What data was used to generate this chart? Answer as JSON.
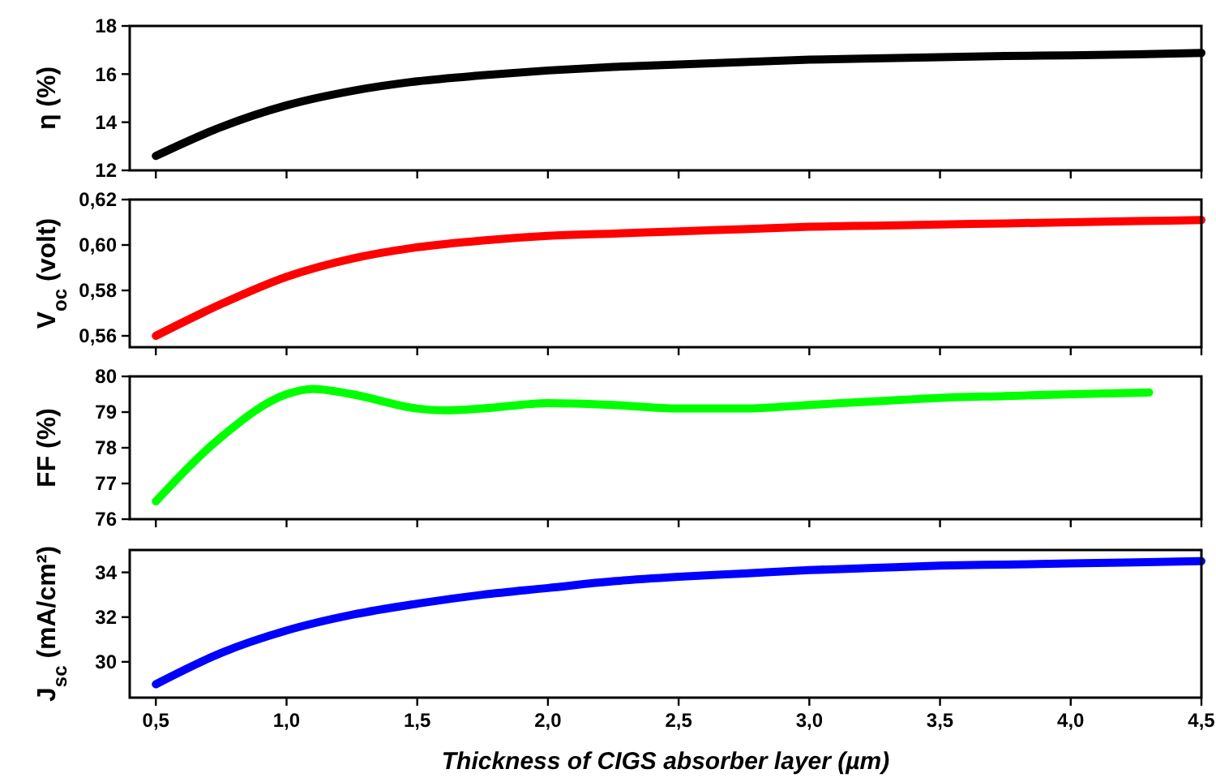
{
  "chart_data": [
    {
      "type": "line",
      "ylabel": "η (%)",
      "xlim": [
        0.4,
        4.5
      ],
      "xticks": [
        {
          "value": 0.5,
          "label": null
        },
        {
          "value": 1,
          "label": null
        },
        {
          "value": 1.5,
          "label": null
        },
        {
          "value": 2,
          "label": null
        },
        {
          "value": 2.5,
          "label": null
        },
        {
          "value": 3,
          "label": null
        },
        {
          "value": 3.5,
          "label": null
        },
        {
          "value": 4,
          "label": null
        },
        {
          "value": 4.5,
          "label": null
        }
      ],
      "ylim": [
        12,
        18
      ],
      "yticks": [
        12,
        14,
        16,
        18
      ],
      "tick_labels": "y",
      "x": [
        0.5,
        0.75,
        1,
        1.25,
        1.5,
        1.75,
        2,
        2.25,
        2.5,
        2.75,
        3,
        3.25,
        3.5,
        3.75,
        4,
        4.25,
        4.5
      ],
      "series": [
        {
          "color": "#000000",
          "values": [
            12.6,
            13.8,
            14.7,
            15.3,
            15.7,
            15.95,
            16.15,
            16.3,
            16.4,
            16.5,
            16.6,
            16.65,
            16.7,
            16.75,
            16.78,
            16.82,
            16.88
          ]
        }
      ]
    },
    {
      "type": "line",
      "ylabel": "V$_{oc}$ (volt)",
      "xlim": [
        0.4,
        4.5
      ],
      "xticks": [
        {
          "value": 0.5,
          "label": null
        },
        {
          "value": 1,
          "label": null
        },
        {
          "value": 1.5,
          "label": null
        },
        {
          "value": 2,
          "label": null
        },
        {
          "value": 2.5,
          "label": null
        },
        {
          "value": 3,
          "label": null
        },
        {
          "value": 3.5,
          "label": null
        },
        {
          "value": 4,
          "label": null
        },
        {
          "value": 4.5,
          "label": null
        }
      ],
      "ylim": [
        0.555,
        0.62
      ],
      "yticks": [
        {
          "value": 0.56,
          "label": "0,56"
        },
        {
          "value": 0.58,
          "label": "0,58"
        },
        {
          "value": 0.6,
          "label": "0,60"
        },
        {
          "value": 0.62,
          "label": "0,62"
        }
      ],
      "tick_labels": "y",
      "x": [
        0.5,
        0.75,
        1,
        1.25,
        1.5,
        1.75,
        2,
        2.25,
        2.5,
        2.75,
        3,
        3.25,
        3.5,
        3.75,
        4,
        4.25,
        4.5
      ],
      "series": [
        {
          "color": "#ff0000",
          "values": [
            0.56,
            0.574,
            0.586,
            0.594,
            0.599,
            0.602,
            0.604,
            0.605,
            0.606,
            0.607,
            0.608,
            0.6085,
            0.609,
            0.6095,
            0.61,
            0.6105,
            0.611
          ]
        }
      ]
    },
    {
      "type": "line",
      "ylabel": "FF (%)",
      "xlim": [
        0.4,
        4.5
      ],
      "xticks": [
        {
          "value": 0.5,
          "label": null
        },
        {
          "value": 1,
          "label": null
        },
        {
          "value": 1.5,
          "label": null
        },
        {
          "value": 2,
          "label": null
        },
        {
          "value": 2.5,
          "label": null
        },
        {
          "value": 3,
          "label": null
        },
        {
          "value": 3.5,
          "label": null
        },
        {
          "value": 4,
          "label": null
        },
        {
          "value": 4.5,
          "label": null
        }
      ],
      "ylim": [
        76,
        80
      ],
      "yticks": [
        76,
        77,
        78,
        79,
        80
      ],
      "tick_labels": "y",
      "x": [
        0.5,
        0.75,
        1,
        1.1,
        1.25,
        1.5,
        1.6,
        1.75,
        2,
        2.25,
        2.5,
        2.75,
        3,
        3.25,
        3.5,
        3.75,
        4,
        4.3
      ],
      "series": [
        {
          "color": "#00ff00",
          "values": [
            76.5,
            78.3,
            79.5,
            79.65,
            79.5,
            79.1,
            79.05,
            79.1,
            79.25,
            79.2,
            79.1,
            79.1,
            79.2,
            79.3,
            79.4,
            79.45,
            79.5,
            79.55
          ]
        }
      ]
    },
    {
      "type": "line",
      "ylabel": "J$_{sc}$ (mA/cm²)",
      "xlabel": "Thickness of CIGS absorber layer (µm)",
      "xlim": [
        0.4,
        4.5
      ],
      "xticks": [
        {
          "value": 0.5,
          "label": "0,5"
        },
        {
          "value": 1,
          "label": "1,0"
        },
        {
          "value": 1.5,
          "label": "1,5"
        },
        {
          "value": 2,
          "label": "2,0"
        },
        {
          "value": 2.5,
          "label": "2,5"
        },
        {
          "value": 3,
          "label": "3,0"
        },
        {
          "value": 3.5,
          "label": "3,5"
        },
        {
          "value": 4,
          "label": "4,0"
        },
        {
          "value": 4.5,
          "label": "4,5"
        }
      ],
      "ylim": [
        28.4,
        35
      ],
      "yticks": [
        30,
        32,
        34
      ],
      "x": [
        0.5,
        0.75,
        1,
        1.25,
        1.5,
        1.75,
        2,
        2.25,
        2.5,
        2.75,
        3,
        3.25,
        3.5,
        3.75,
        4,
        4.25,
        4.5
      ],
      "series": [
        {
          "color": "#0000ff",
          "values": [
            29.0,
            30.4,
            31.4,
            32.1,
            32.6,
            33.0,
            33.3,
            33.6,
            33.8,
            33.95,
            34.1,
            34.2,
            34.3,
            34.35,
            34.4,
            34.45,
            34.5
          ]
        }
      ]
    }
  ]
}
